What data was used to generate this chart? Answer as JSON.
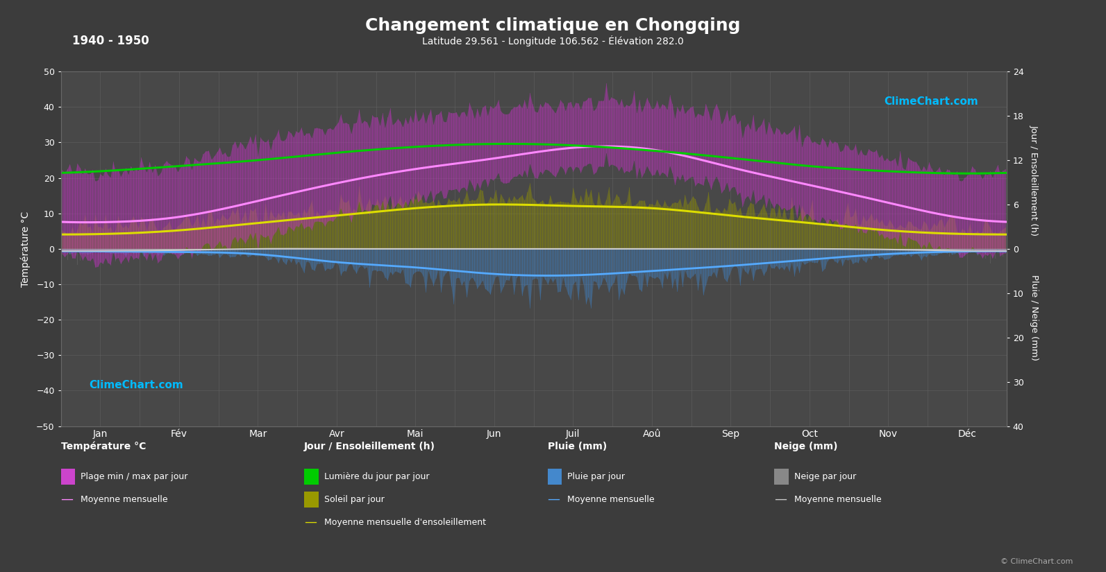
{
  "title": "Changement climatique en Chongqing",
  "subtitle": "Latitude 29.561 - Longitude 106.562 - Élévation 282.0",
  "period": "1940 - 1950",
  "background_color": "#3c3c3c",
  "plot_bg_color": "#484848",
  "text_color": "#ffffff",
  "months": [
    "Jan",
    "Fév",
    "Mar",
    "Avr",
    "Mai",
    "Jun",
    "Juil",
    "Aoû",
    "Sep",
    "Oct",
    "Nov",
    "Déc"
  ],
  "temp_ylim": [
    -50,
    50
  ],
  "temp_yticks": [
    -50,
    -40,
    -30,
    -20,
    -10,
    0,
    10,
    20,
    30,
    40,
    50
  ],
  "sun_ylim": [
    0,
    24
  ],
  "sun_yticks": [
    0,
    6,
    12,
    18,
    24
  ],
  "rain_ylim_mm": [
    0,
    40
  ],
  "rain_yticks": [
    0,
    10,
    20,
    30,
    40
  ],
  "temp_mean": [
    7.5,
    9.0,
    13.5,
    18.5,
    22.5,
    25.5,
    28.5,
    28.0,
    23.0,
    18.0,
    13.0,
    8.5
  ],
  "temp_abs_max": [
    22,
    24,
    30,
    35,
    37,
    39,
    41,
    41,
    37,
    31,
    25,
    21
  ],
  "temp_abs_min": [
    -3,
    -1,
    3,
    9,
    14,
    19,
    23,
    22,
    17,
    9,
    3,
    -1
  ],
  "daylight": [
    10.5,
    11.2,
    12.0,
    13.0,
    13.8,
    14.2,
    14.0,
    13.3,
    12.3,
    11.2,
    10.5,
    10.2
  ],
  "sunshine_mean": [
    2.0,
    2.5,
    3.5,
    4.5,
    5.5,
    6.0,
    5.8,
    5.5,
    4.5,
    3.5,
    2.5,
    2.0
  ],
  "rain_mean_monthly": [
    18,
    20,
    38,
    90,
    130,
    170,
    185,
    155,
    115,
    75,
    35,
    18
  ],
  "days_per_month": [
    31,
    28,
    31,
    30,
    31,
    30,
    31,
    31,
    30,
    31,
    30,
    31
  ],
  "snow_daily_max": [
    3,
    2,
    0,
    0,
    0,
    0,
    0,
    0,
    0,
    0,
    1,
    3
  ],
  "grid_color": "#686868",
  "temp_band_color_top": "#dd44dd",
  "temp_band_color_bot": "#882288",
  "sunshine_color": "#999900",
  "sunshine_fill_color": "#aaaa00",
  "rain_color": "#3377bb",
  "rain_fill_color": "#4488cc",
  "snow_color": "#888888",
  "daylight_line_color": "#00cc00",
  "temp_mean_color": "#ff88ff",
  "sunshine_mean_color": "#dddd00",
  "rain_mean_color": "#55aaff",
  "snow_mean_color": "#cccccc",
  "logo_color": "#00bbff",
  "copyright_color": "#aaaaaa"
}
